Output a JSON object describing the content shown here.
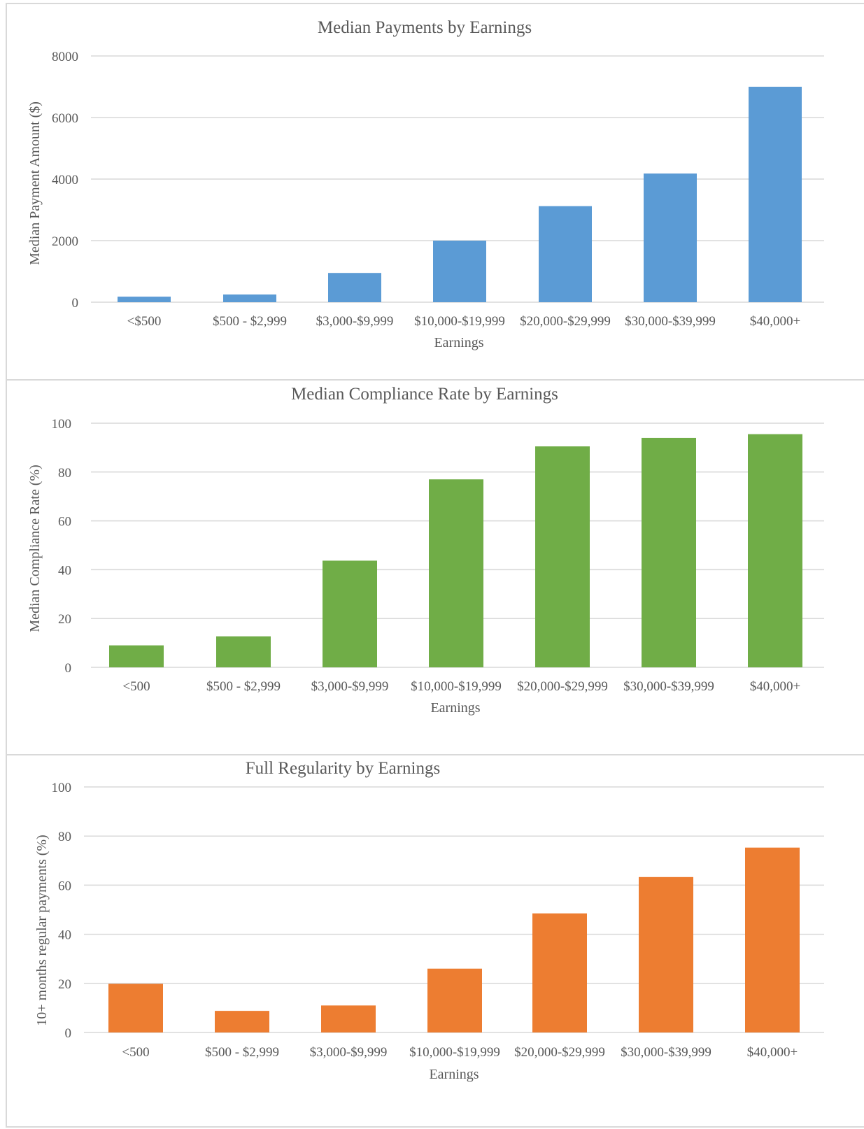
{
  "chart_data": [
    {
      "type": "bar",
      "title": "Median Payments by Earnings",
      "xlabel": "Earnings",
      "ylabel": "Median Payment Amount ($)",
      "categories": [
        "<$500",
        "$500 - $2,999",
        "$3,000-$9,999",
        "$10,000-$19,999",
        "$20,000-$29,999",
        "$30,000-$39,999",
        "$40,000+"
      ],
      "series": [
        {
          "values": [
            180,
            250,
            950,
            2000,
            3120,
            4180,
            7000
          ],
          "color": "#5b9bd5"
        }
      ],
      "ylim": [
        0,
        8000
      ],
      "yticks": [
        "0",
        "2000",
        "4000",
        "6000",
        "8000"
      ],
      "grid": true
    },
    {
      "type": "bar",
      "title": "Median Compliance Rate by Earnings",
      "xlabel": "Earnings",
      "ylabel": "Median Compliance Rate (%)",
      "categories": [
        "<500",
        "$500 - $2,999",
        "$3,000-$9,999",
        "$10,000-$19,999",
        "$20,000-$29,999",
        "$30,000-$39,999",
        "$40,000+"
      ],
      "series": [
        {
          "values": [
            9,
            12.7,
            43.7,
            77,
            90.5,
            94,
            95.5
          ],
          "color": "#70ad47"
        }
      ],
      "ylim": [
        0,
        100
      ],
      "yticks": [
        "0",
        "20",
        "40",
        "60",
        "80",
        "100"
      ],
      "grid": true
    },
    {
      "type": "bar",
      "title": "Full Regularity by Earnings",
      "xlabel": "Earnings",
      "ylabel": "10+ months regular payments (%)",
      "categories": [
        "<500",
        "$500 - $2,999",
        "$3,000-$9,999",
        "$10,000-$19,999",
        "$20,000-$29,999",
        "$30,000-$39,999",
        "$40,000+"
      ],
      "series": [
        {
          "values": [
            19.8,
            8.8,
            11,
            26,
            48.5,
            63.3,
            75.3
          ],
          "color": "#ed7d31"
        }
      ],
      "ylim": [
        0,
        100
      ],
      "yticks": [
        "0",
        "20",
        "40",
        "60",
        "80",
        "100"
      ],
      "grid": true
    }
  ]
}
